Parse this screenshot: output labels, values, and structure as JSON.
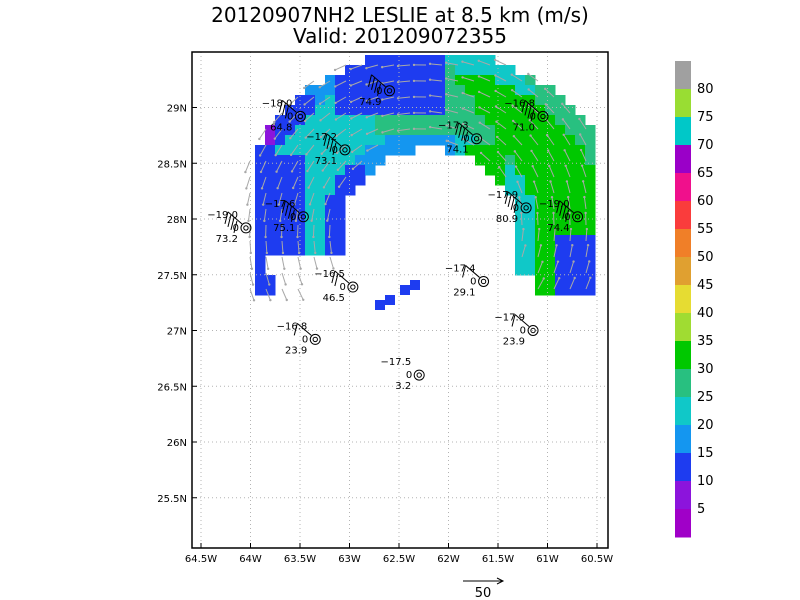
{
  "title_line1": "20120907NH2 LESLIE at 8.5 km (m/s)",
  "title_line2": "Valid: 201209072355",
  "lon_ticks": [
    "64.5W",
    "64W",
    "63.5W",
    "63W",
    "62.5W",
    "62W",
    "61.5W",
    "61W",
    "60.5W"
  ],
  "lat_ticks": [
    "29N",
    "28.5N",
    "28N",
    "27.5N",
    "27N",
    "26.5N",
    "26N",
    "25.5N"
  ],
  "colorbar": {
    "labels": [
      "80",
      "75",
      "70",
      "65",
      "60",
      "55",
      "50",
      "45",
      "40",
      "35",
      "30",
      "25",
      "20",
      "15",
      "10",
      "5"
    ],
    "colors": [
      "#a0a0a0",
      "#99dd33",
      "#00c8c8",
      "#9a00c8",
      "#f0108c",
      "#fa3c3c",
      "#f07f28",
      "#e0a030",
      "#e6dc32",
      "#a0dc32",
      "#00c800",
      "#28c080",
      "#10c8c8",
      "#1496f0",
      "#1e3cf0",
      "#8c14dc",
      "#a000c8"
    ]
  },
  "scale_arrow_label": "50",
  "stations": [
    {
      "temp": "",
      "dir": "0",
      "spd": "74.9",
      "lon": -62.5,
      "lat": 29.15
    },
    {
      "temp": "−16.8",
      "dir": "0",
      "spd": "71.0",
      "lon": -60.95,
      "lat": 28.92
    },
    {
      "temp": "−18.0",
      "dir": "0",
      "spd": "64.8",
      "lon": -63.4,
      "lat": 28.92
    },
    {
      "temp": "−17.2",
      "dir": "0",
      "spd": "73.1",
      "lon": -62.95,
      "lat": 28.62
    },
    {
      "temp": "−17.3",
      "dir": "0",
      "spd": "74.1",
      "lon": -61.62,
      "lat": 28.72
    },
    {
      "temp": "−17.9",
      "dir": "0",
      "spd": "80.9",
      "lon": -61.12,
      "lat": 28.1
    },
    {
      "temp": "−19.0",
      "dir": "0",
      "spd": "74.4",
      "lon": -60.6,
      "lat": 28.02
    },
    {
      "temp": "−17.6",
      "dir": "0",
      "spd": "75.1",
      "lon": -63.37,
      "lat": 28.02
    },
    {
      "temp": "−19.0",
      "dir": "0",
      "spd": "73.2",
      "lon": -63.95,
      "lat": 27.92
    },
    {
      "temp": "−16.5",
      "dir": "0",
      "spd": "46.5",
      "lon": -62.87,
      "lat": 27.39
    },
    {
      "temp": "−17.4",
      "dir": "0",
      "spd": "29.1",
      "lon": -61.55,
      "lat": 27.44
    },
    {
      "temp": "−17.9",
      "dir": "0",
      "spd": "23.9",
      "lon": -61.05,
      "lat": 27.0
    },
    {
      "temp": "−16.8",
      "dir": "0",
      "spd": "23.9",
      "lon": -63.25,
      "lat": 26.92
    },
    {
      "temp": "−17.5",
      "dir": "0",
      "spd": "3.2",
      "lon": -62.2,
      "lat": 26.6
    }
  ]
}
